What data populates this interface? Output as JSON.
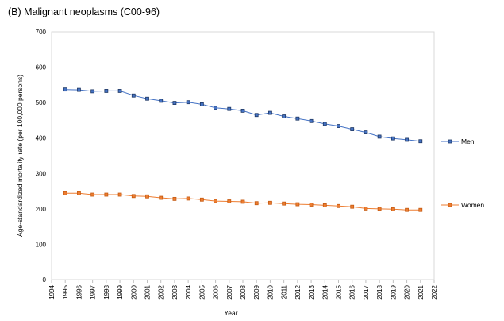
{
  "chart_data": {
    "type": "line",
    "title": "(B) Malignant neoplasms  (C00-96)",
    "xlabel": "Year",
    "ylabel": "Age-standardized mortality rate (per 100,000 persons)",
    "xlim": [
      1994,
      2022
    ],
    "ylim": [
      0,
      700
    ],
    "x_ticks": [
      1994,
      1995,
      1996,
      1997,
      1998,
      1999,
      2000,
      2001,
      2002,
      2003,
      2004,
      2005,
      2006,
      2007,
      2008,
      2009,
      2010,
      2011,
      2012,
      2013,
      2014,
      2015,
      2016,
      2017,
      2018,
      2019,
      2020,
      2021,
      2022
    ],
    "y_ticks": [
      0,
      100,
      200,
      300,
      400,
      500,
      600,
      700
    ],
    "grid": false,
    "legend": "right",
    "x": [
      1995,
      1996,
      1997,
      1998,
      1999,
      2000,
      2001,
      2002,
      2003,
      2004,
      2005,
      2006,
      2007,
      2008,
      2009,
      2010,
      2011,
      2012,
      2013,
      2014,
      2015,
      2016,
      2017,
      2018,
      2019,
      2020,
      2021
    ],
    "series": [
      {
        "name": "Men",
        "color": "#4472C4",
        "marker_color": "#1F3864",
        "values": [
          537,
          536,
          532,
          533,
          533,
          520,
          511,
          505,
          499,
          501,
          495,
          485,
          482,
          477,
          465,
          471,
          461,
          455,
          448,
          440,
          434,
          425,
          416,
          404,
          399,
          395,
          391
        ]
      },
      {
        "name": "Women",
        "color": "#ED7D31",
        "marker_color": "#C55A11",
        "values": [
          244,
          244,
          240,
          240,
          240,
          236,
          235,
          231,
          228,
          229,
          226,
          222,
          221,
          220,
          216,
          217,
          215,
          213,
          212,
          210,
          208,
          206,
          201,
          200,
          199,
          197,
          197
        ]
      }
    ]
  }
}
